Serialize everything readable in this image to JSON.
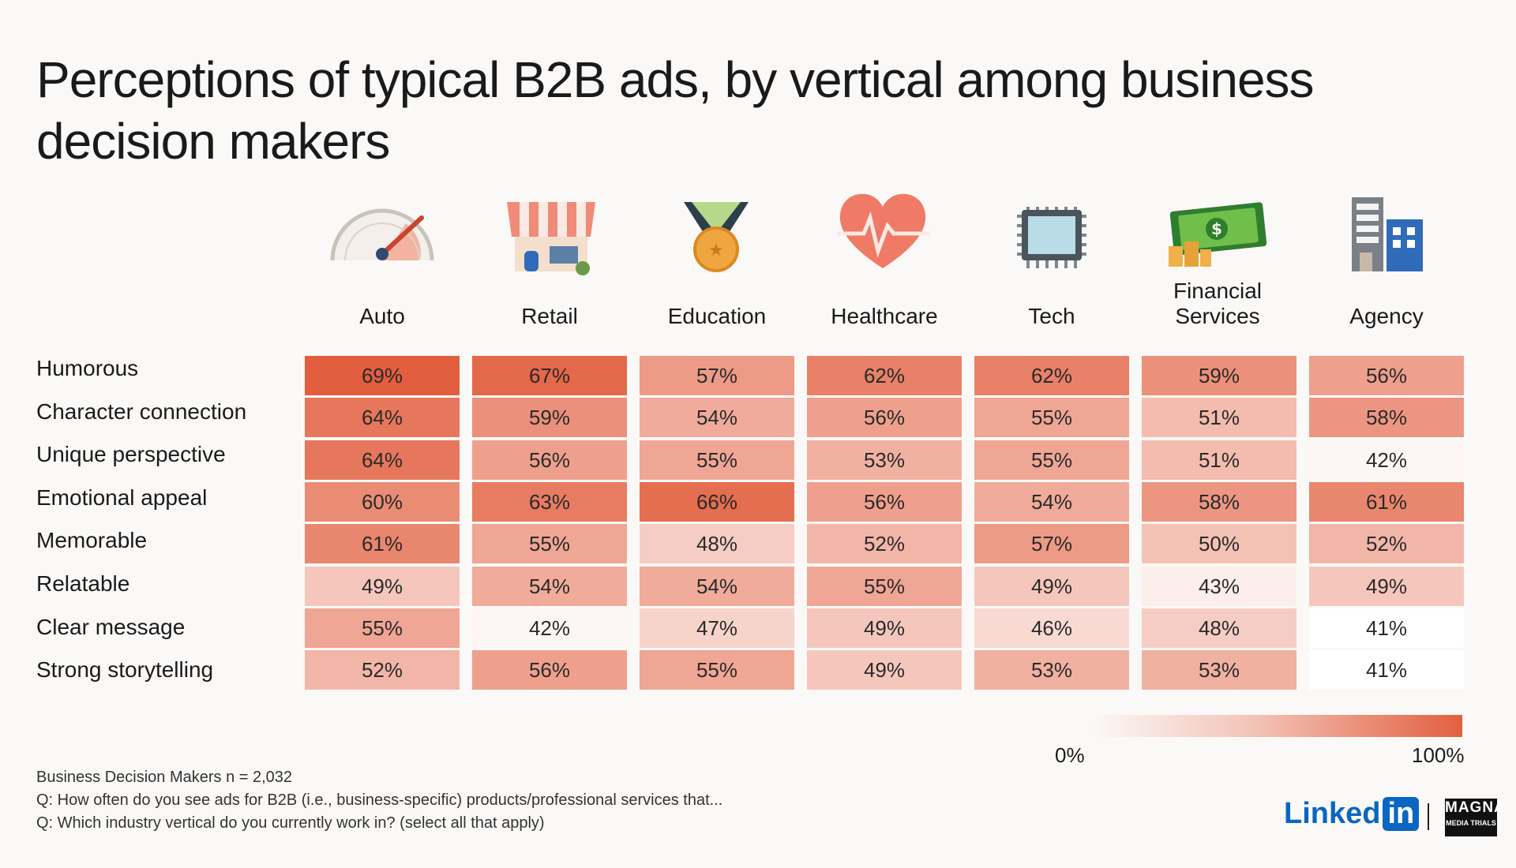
{
  "chart_data": {
    "type": "heatmap",
    "title": "Perceptions of typical B2B ads, by vertical among business decision makers",
    "columns": [
      "Auto",
      "Retail",
      "Education",
      "Healthcare",
      "Tech",
      "Financial Services",
      "Agency"
    ],
    "rows": [
      "Humorous",
      "Character connection",
      "Unique perspective",
      "Emotional appeal",
      "Memorable",
      "Relatable",
      "Clear message",
      "Strong storytelling"
    ],
    "values": [
      [
        69,
        67,
        57,
        62,
        62,
        59,
        56
      ],
      [
        64,
        59,
        54,
        56,
        55,
        51,
        58
      ],
      [
        64,
        56,
        55,
        53,
        55,
        51,
        42
      ],
      [
        60,
        63,
        66,
        56,
        54,
        58,
        61
      ],
      [
        61,
        55,
        48,
        52,
        57,
        50,
        52
      ],
      [
        49,
        54,
        54,
        55,
        49,
        43,
        49
      ],
      [
        55,
        42,
        47,
        49,
        46,
        48,
        41
      ],
      [
        52,
        56,
        55,
        49,
        53,
        53,
        41
      ]
    ],
    "unit": "%",
    "color_scale": {
      "min_label": "0%",
      "max_label": "100%",
      "color": "#e2603f"
    }
  },
  "icons": [
    "speedometer-icon",
    "storefront-icon",
    "medal-icon",
    "heart-pulse-icon",
    "microchip-icon",
    "money-icon",
    "office-building-icon"
  ],
  "footnotes": {
    "sample": "Business Decision Makers n = 2,032",
    "q1": "Q: How often do you see ads for B2B (i.e., business-specific) products/professional services that...",
    "q2": "Q: Which industry vertical do you currently work in? (select all that apply)"
  },
  "branding": {
    "linkedin_text": "Linked",
    "linkedin_in": "in",
    "magna_line1": "MAGNA",
    "magna_line2": "MEDIA TRIALS"
  }
}
